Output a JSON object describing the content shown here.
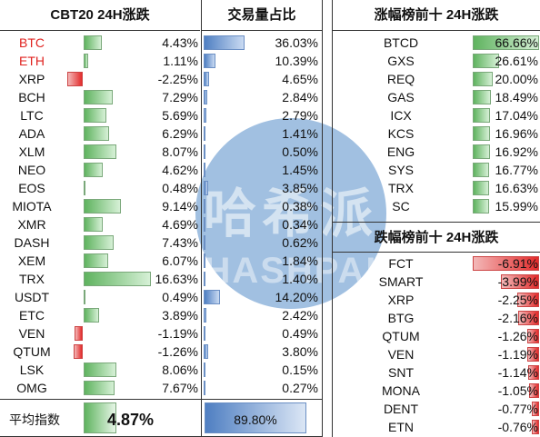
{
  "headers": {
    "cbt20": "CBT20 24H涨跌",
    "volume": "交易量占比",
    "top_gainers": "涨幅榜前十 24H涨跌",
    "top_losers": "跌幅榜前十 24H涨跌"
  },
  "colors": {
    "red_text": "#e0221f",
    "gain": "#5fb35f",
    "loss": "#e32b2b",
    "volume": "#4f7fc2",
    "watermark": "#6799cf"
  },
  "cbt20_rows": [
    {
      "coin": "BTC",
      "change": "4.43%",
      "change_value": 4.43,
      "volume": "36.03%",
      "volume_value": 36.03,
      "red": true
    },
    {
      "coin": "ETH",
      "change": "1.11%",
      "change_value": 1.11,
      "volume": "10.39%",
      "volume_value": 10.39,
      "red": true
    },
    {
      "coin": "XRP",
      "change": "-2.25%",
      "change_value": -2.25,
      "volume": "4.65%",
      "volume_value": 4.65,
      "red": false
    },
    {
      "coin": "BCH",
      "change": "7.29%",
      "change_value": 7.29,
      "volume": "2.84%",
      "volume_value": 2.84,
      "red": false
    },
    {
      "coin": "LTC",
      "change": "5.69%",
      "change_value": 5.69,
      "volume": "2.79%",
      "volume_value": 2.79,
      "red": false
    },
    {
      "coin": "ADA",
      "change": "6.29%",
      "change_value": 6.29,
      "volume": "1.41%",
      "volume_value": 1.41,
      "red": false
    },
    {
      "coin": "XLM",
      "change": "8.07%",
      "change_value": 8.07,
      "volume": "0.50%",
      "volume_value": 0.5,
      "red": false
    },
    {
      "coin": "NEO",
      "change": "4.62%",
      "change_value": 4.62,
      "volume": "1.45%",
      "volume_value": 1.45,
      "red": false
    },
    {
      "coin": "EOS",
      "change": "0.48%",
      "change_value": 0.48,
      "volume": "3.85%",
      "volume_value": 3.85,
      "red": false
    },
    {
      "coin": "MIOTA",
      "change": "9.14%",
      "change_value": 9.14,
      "volume": "0.38%",
      "volume_value": 0.38,
      "red": false
    },
    {
      "coin": "XMR",
      "change": "4.69%",
      "change_value": 4.69,
      "volume": "0.34%",
      "volume_value": 0.34,
      "red": false
    },
    {
      "coin": "DASH",
      "change": "7.43%",
      "change_value": 7.43,
      "volume": "0.62%",
      "volume_value": 0.62,
      "red": false
    },
    {
      "coin": "XEM",
      "change": "6.07%",
      "change_value": 6.07,
      "volume": "1.84%",
      "volume_value": 1.84,
      "red": false
    },
    {
      "coin": "TRX",
      "change": "16.63%",
      "change_value": 16.63,
      "volume": "1.40%",
      "volume_value": 1.4,
      "red": false
    },
    {
      "coin": "USDT",
      "change": "0.49%",
      "change_value": 0.49,
      "volume": "14.20%",
      "volume_value": 14.2,
      "red": false
    },
    {
      "coin": "ETC",
      "change": "3.89%",
      "change_value": 3.89,
      "volume": "2.42%",
      "volume_value": 2.42,
      "red": false
    },
    {
      "coin": "VEN",
      "change": "-1.19%",
      "change_value": -1.19,
      "volume": "0.49%",
      "volume_value": 0.49,
      "red": false
    },
    {
      "coin": "QTUM",
      "change": "-1.26%",
      "change_value": -1.26,
      "volume": "3.80%",
      "volume_value": 3.8,
      "red": false
    },
    {
      "coin": "LSK",
      "change": "8.06%",
      "change_value": 8.06,
      "volume": "0.15%",
      "volume_value": 0.15,
      "red": false
    },
    {
      "coin": "OMG",
      "change": "7.67%",
      "change_value": 7.67,
      "volume": "0.27%",
      "volume_value": 0.27,
      "red": false
    }
  ],
  "average": {
    "label": "平均指数",
    "change": "4.87%",
    "volume": "89.80%"
  },
  "top_gainers": [
    {
      "coin": "BTCD",
      "change": "66.66%",
      "value": 66.66
    },
    {
      "coin": "GXS",
      "change": "26.61%",
      "value": 26.61
    },
    {
      "coin": "REQ",
      "change": "20.00%",
      "value": 20.0
    },
    {
      "coin": "GAS",
      "change": "18.49%",
      "value": 18.49
    },
    {
      "coin": "ICX",
      "change": "17.04%",
      "value": 17.04
    },
    {
      "coin": "KCS",
      "change": "16.96%",
      "value": 16.96
    },
    {
      "coin": "ENG",
      "change": "16.92%",
      "value": 16.92
    },
    {
      "coin": "SYS",
      "change": "16.77%",
      "value": 16.77
    },
    {
      "coin": "TRX",
      "change": "16.63%",
      "value": 16.63
    },
    {
      "coin": "SC",
      "change": "15.99%",
      "value": 15.99
    }
  ],
  "top_losers": [
    {
      "coin": "FCT",
      "change": "-6.91%",
      "value": -6.91
    },
    {
      "coin": "SMART",
      "change": "-3.99%",
      "value": -3.99
    },
    {
      "coin": "XRP",
      "change": "-2.25%",
      "value": -2.25
    },
    {
      "coin": "BTG",
      "change": "-2.16%",
      "value": -2.16
    },
    {
      "coin": "QTUM",
      "change": "-1.26%",
      "value": -1.26
    },
    {
      "coin": "VEN",
      "change": "-1.19%",
      "value": -1.19
    },
    {
      "coin": "SNT",
      "change": "-1.14%",
      "value": -1.14
    },
    {
      "coin": "MONA",
      "change": "-1.05%",
      "value": -1.05
    },
    {
      "coin": "DENT",
      "change": "-0.77%",
      "value": -0.77
    },
    {
      "coin": "ETN",
      "change": "-0.76%",
      "value": -0.76
    }
  ],
  "watermark": {
    "cn": "哈希派",
    "en": "HASHPAI"
  }
}
